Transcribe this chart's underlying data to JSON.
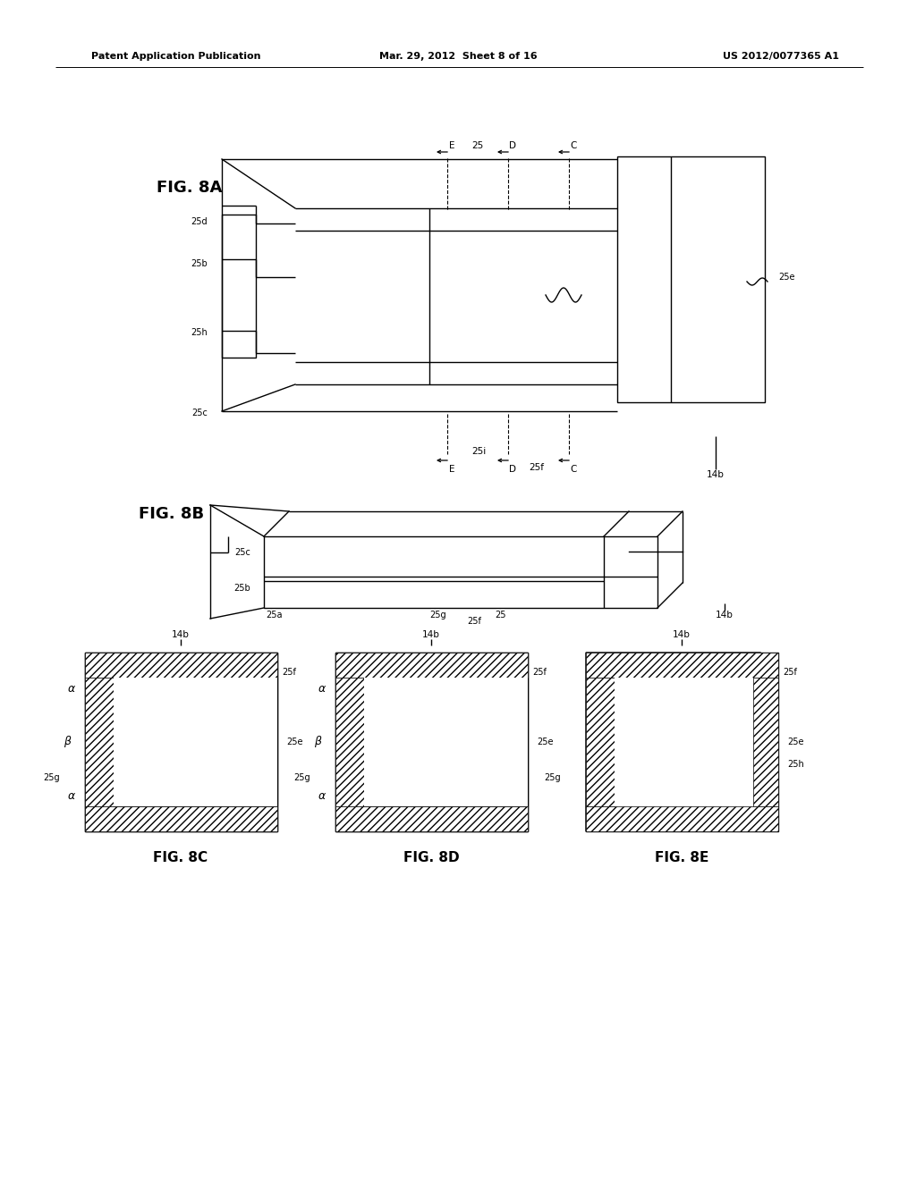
{
  "bg_color": "#ffffff",
  "header_left": "Patent Application Publication",
  "header_mid": "Mar. 29, 2012  Sheet 8 of 16",
  "header_right": "US 2012/0077365 A1",
  "fig8a_label": "FIG. 8A",
  "fig8b_label": "FIG. 8B",
  "fig8c_label": "FIG. 8C",
  "fig8d_label": "FIG. 8D",
  "fig8e_label": "FIG. 8E"
}
